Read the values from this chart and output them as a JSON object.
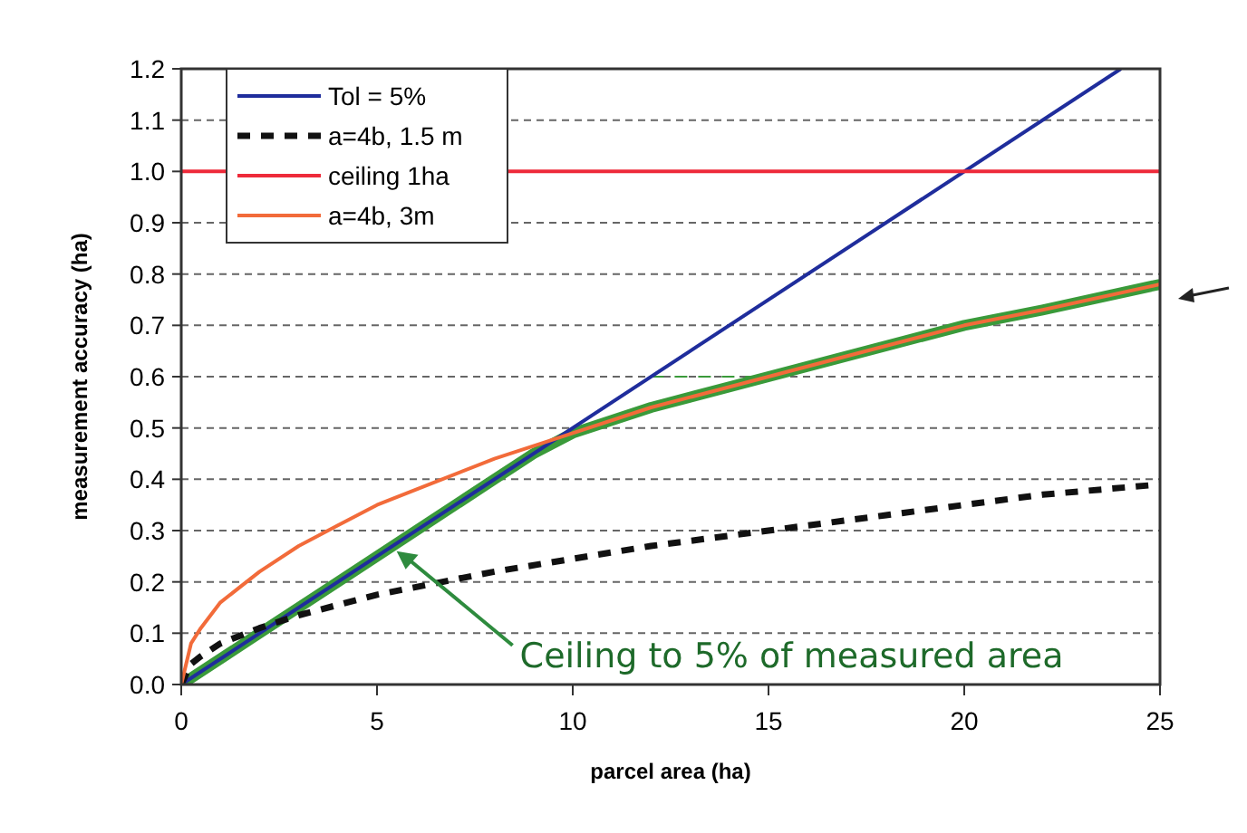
{
  "chart_data": {
    "type": "line",
    "xlabel": "parcel area (ha)",
    "ylabel": "measurement accuracy (ha)",
    "xlim": [
      0,
      25
    ],
    "xticks": [
      0,
      5,
      10,
      15,
      20,
      25
    ],
    "ylim": [
      0,
      1.2
    ],
    "yticks": [
      {
        "value": 0,
        "label": "0.0"
      },
      0.1,
      0.2,
      0.3,
      0.4,
      0.5,
      0.6,
      0.7,
      0.8,
      0.9,
      {
        "value": 1,
        "label": "1.0"
      },
      1.1,
      1.2
    ],
    "grid": "y",
    "legend": "top left",
    "series": [
      {
        "name": "Tol = 5%",
        "color": "#1f2d9c",
        "x": [
          0,
          24
        ],
        "values": [
          0,
          1.2
        ]
      },
      {
        "name": "a=4b, 1.5 m",
        "color": "#111111",
        "line_style": "dashed",
        "x": [
          0,
          0.25,
          0.5,
          1,
          2,
          3,
          4,
          5,
          6,
          8,
          10,
          12,
          15,
          18,
          20,
          22,
          25
        ],
        "values": [
          0,
          0.04,
          0.055,
          0.08,
          0.11,
          0.135,
          0.155,
          0.175,
          0.19,
          0.22,
          0.245,
          0.27,
          0.3,
          0.33,
          0.35,
          0.37,
          0.39
        ]
      },
      {
        "name": "ceiling 1ha",
        "color": "#ee2a3a",
        "x": [
          0,
          25
        ],
        "values": [
          1,
          1
        ]
      },
      {
        "name": "a=4b, 3m",
        "color": "#f26b3a",
        "x": [
          0,
          0.25,
          0.5,
          1,
          2,
          3,
          4,
          5,
          6,
          8,
          10,
          12,
          15,
          18,
          20,
          22,
          25
        ],
        "values": [
          0,
          0.08,
          0.11,
          0.16,
          0.22,
          0.27,
          0.31,
          0.35,
          0.38,
          0.44,
          0.49,
          0.54,
          0.6,
          0.66,
          0.7,
          0.73,
          0.78
        ]
      },
      {
        "color": "#3a9a3a",
        "x": [
          0,
          2,
          4,
          6,
          8,
          9,
          10,
          12,
          15,
          18,
          20,
          22,
          25
        ],
        "values": [
          0,
          0.1,
          0.2,
          0.3,
          0.4,
          0.45,
          0.49,
          0.54,
          0.6,
          0.66,
          0.7,
          0.73,
          0.78
        ]
      },
      {
        "color": "#3a9a3a",
        "line_style": "dashed",
        "x": [
          12,
          15
        ],
        "values": [
          0.6,
          0.6
        ]
      }
    ],
    "annotations": [
      {
        "text": "Ceiling to 5% of measured area",
        "x": 5.5,
        "y": 0.26
      }
    ]
  }
}
